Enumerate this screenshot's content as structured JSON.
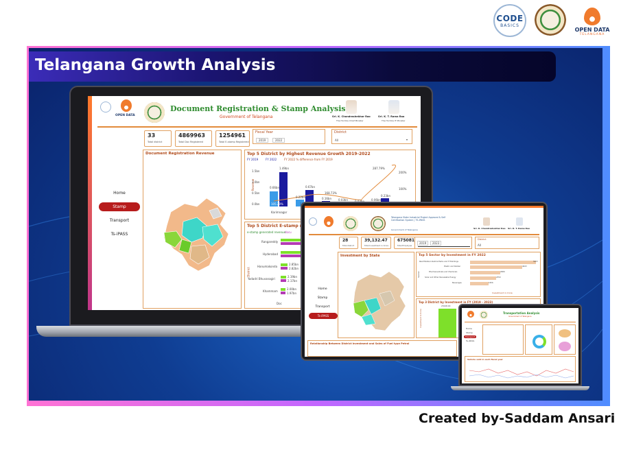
{
  "logos": {
    "code_basics": {
      "line1": "CODE",
      "line2": "BASICS",
      "icon": "codebasics-logo-icon"
    },
    "telangana_seal": {
      "icon": "ts-ipass-seal-icon"
    },
    "open_data": {
      "line1": "OPEN DATA",
      "line2": "TELANGANA",
      "icon": "open-data-flame-icon"
    }
  },
  "banner": {
    "title": "Telangana Growth Analysis"
  },
  "laptop_dashboard": {
    "title": "Document Registration & Stamp Analysis",
    "subtitle": "Government of Telangana",
    "leaders": [
      {
        "name": "Sri. K. Chandrashekhar Rao",
        "role": "The Hon'ble Chief Minister"
      },
      {
        "name": "Sri. K. T. Rama Rao",
        "role": "The Hon'ble IT Minister"
      }
    ],
    "kpis": [
      {
        "value": "33",
        "label": "Total district"
      },
      {
        "value": "4869963",
        "label": "Total Doc Registered"
      },
      {
        "value": "1254961",
        "label": "Total E-stamp Registered"
      }
    ],
    "filters": {
      "fiscal_year_label": "Fiscal Year",
      "fiscal_year_from": "2019",
      "fiscal_year_to": "2022",
      "district_label": "District",
      "district_value": "All"
    },
    "nav": [
      "Home",
      "Stamp",
      "Transport",
      "Ts-iPASS"
    ],
    "nav_active": "Stamp",
    "map_panel_title": "Document Registration Revenue",
    "revenue_chart": {
      "title": "Top 5 District by Highest Revenue Growth 2019-2022",
      "legend": [
        "FY 2019",
        "FY 2022",
        "FY 2022 % difference from FY 2019"
      ],
      "y_label": "Revenue",
      "y_ticks": [
        "1.5bn",
        "1.0bn",
        "0.5bn",
        "0.0bn"
      ],
      "category_visible": "Karimnagar",
      "labels": [
        "0.66bn",
        "1.49bn",
        "0.22bn",
        "0.67bn",
        "0.16bn",
        "0.03bn",
        "0.03bn",
        "0.06bn",
        "0.23bn"
      ],
      "pct_labels": [
        "105.20%",
        "154.78%",
        "168.73%",
        "287.79%"
      ],
      "right_ticks": [
        "200%",
        "100%",
        "0%"
      ]
    },
    "estamp_chart": {
      "title": "Top 5 District E-stamp rev",
      "legend": [
        "e-stamp generated revenue",
        "docu"
      ],
      "y_label": "District",
      "x_label": "Doc",
      "rows": [
        {
          "district": "Rangareddy"
        },
        {
          "district": "Hyderabad"
        },
        {
          "district": "Hanumakonda",
          "v1": "2.85bn",
          "v2": "2.82bn"
        },
        {
          "district": "Yadadri Bhuvanagiri",
          "v1": "2.19bn",
          "v2": "2.17bn"
        },
        {
          "district": "Khammam",
          "v1": "2.00bn",
          "v2": "1.97bn"
        }
      ]
    }
  },
  "tablet_dashboard": {
    "header": "Telangana State Industrial Project Approval & Self Certification System | TS-iPASS",
    "subheader": "Government of Telangana",
    "leaders": [
      "Sri. K. Chandrashekhar Rao",
      "Sri. K. T. Rama Rao"
    ],
    "kpis": [
      {
        "value": "28",
        "label": "Total district"
      },
      {
        "value": "39,132.47",
        "label": "Total Investment in Crore"
      },
      {
        "value": "675081",
        "label": "Total Employee"
      }
    ],
    "filters": {
      "year_from": "2019",
      "year_to": "2023",
      "district_label": "District",
      "district_value": "All"
    },
    "nav": [
      "Home",
      "Stamp",
      "Transport",
      "Ts-iPASS"
    ],
    "nav_active": "Ts-iPASS",
    "map_panel_title": "Investment by State",
    "sector_chart": {
      "title": "Top 5 Sector by Investment in FY 2022",
      "y_label": "Sector",
      "x_label": "Investment in Crore",
      "sectors": [
        {
          "name": "Real Estate,Industrial Parks and IT Buildings",
          "label": "5903"
        },
        {
          "name": "Plastic and Rubber",
          "label": "4643"
        },
        {
          "name": "Pharmaceuticals and Chemicals",
          "label": "2689"
        },
        {
          "name": "Solar and Other Renewable Energy",
          "label": "2350"
        },
        {
          "name": "Beverages",
          "label": "1656"
        }
      ]
    },
    "district_chart": {
      "title": "Top 3 District by Investment in FY (2019 - 2023)",
      "y_label": "Investment in Crore",
      "label": "23248.00"
    },
    "footer_panels": [
      "Relationship Between District Investment and Sales of Fuel type Petrol",
      "Relationship Between District"
    ]
  },
  "mini_dashboard": {
    "title": "Transportation Analysis",
    "subtitle": "Government of Telangana",
    "nav": [
      "Home",
      "Stamp",
      "Transport",
      "Ts-iPASS"
    ],
    "nav_active": "Transport",
    "chart_title": "Vehicle sold in each fiscal year"
  },
  "credit": "Created by-Saddam Ansari",
  "colors": {
    "banner_dark": "#0a226a",
    "banner_light": "#1e67c8",
    "accent_orange": "#e28a3a",
    "title_green": "#2e8b2e",
    "active_red": "#b71c1c",
    "bar_dark": "#1a1a9e",
    "bar_light": "#3a9be8",
    "bar_green": "#7ee02a",
    "bar_purple": "#b53ab5",
    "sector_bar": "#f0c9a6"
  }
}
